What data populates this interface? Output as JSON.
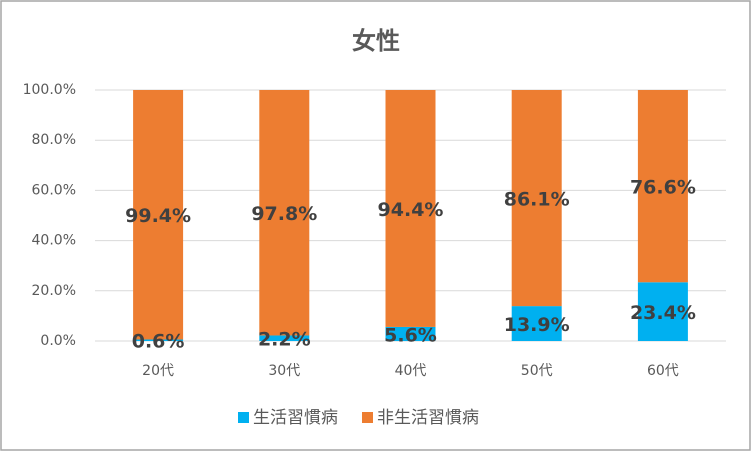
{
  "chart_data": {
    "type": "stacked_bar",
    "title": "女性",
    "categories": [
      "20代",
      "30代",
      "40代",
      "50代",
      "60代"
    ],
    "series": [
      {
        "name": "生活習慣病",
        "color": "#00b0f0",
        "values": [
          0.6,
          2.2,
          5.6,
          13.9,
          23.4
        ],
        "value_labels": [
          "0.6%",
          "2.2%",
          "5.6%",
          "13.9%",
          "23.4%"
        ]
      },
      {
        "name": "非生活習慣病",
        "color": "#ed7d31",
        "values": [
          99.4,
          97.8,
          94.4,
          86.1,
          76.6
        ],
        "value_labels": [
          "99.4%",
          "97.8%",
          "94.4%",
          "86.1%",
          "76.6%"
        ]
      }
    ],
    "ylim": [
      0,
      100
    ],
    "yticks": [
      {
        "value": 0,
        "label": "0.0%"
      },
      {
        "value": 20,
        "label": "20.0%"
      },
      {
        "value": 40,
        "label": "40.0%"
      },
      {
        "value": 60,
        "label": "60.0%"
      },
      {
        "value": 80,
        "label": "80.0%"
      },
      {
        "value": 100,
        "label": "100.0%"
      }
    ],
    "grid": true,
    "legend": "bottom"
  }
}
